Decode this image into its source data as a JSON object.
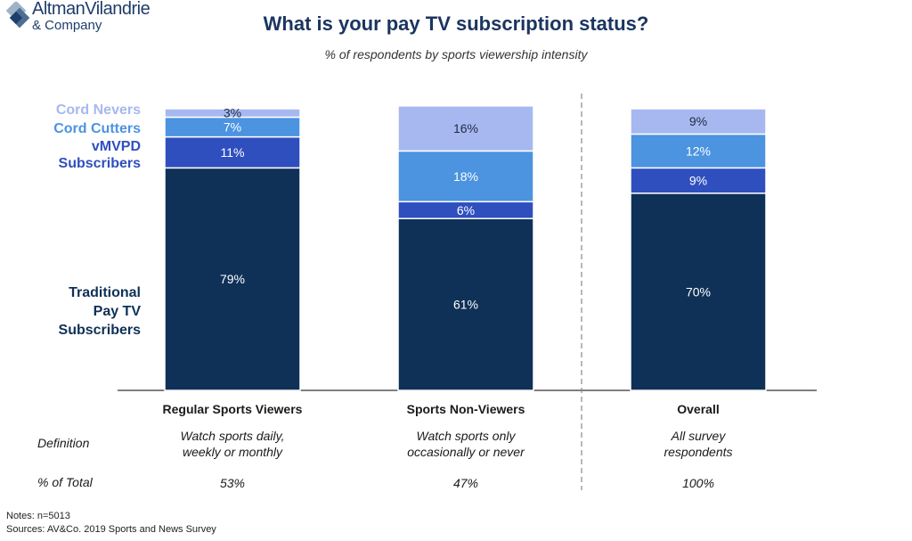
{
  "logo": {
    "line1": "AltmanVilandrie",
    "line2": "& Company"
  },
  "title": "What is your pay TV subscription status?",
  "subtitle": "% of respondents by sports viewership intensity",
  "colors": {
    "traditional": "#0f3157",
    "vmvpd": "#2f4fbf",
    "cutters": "#4c93e0",
    "nevers": "#a7b8f0",
    "label_light": "#ffffff",
    "label_dark": "#1f2a44"
  },
  "chart_data": {
    "type": "bar",
    "stacked": true,
    "categories": [
      "Regular Sports Viewers",
      "Sports Non-Viewers",
      "Overall"
    ],
    "series": [
      {
        "name": "Traditional Pay TV Subscribers",
        "values": [
          79,
          61,
          70
        ]
      },
      {
        "name": "vMVPD Subscribers",
        "values": [
          11,
          6,
          9
        ]
      },
      {
        "name": "Cord Cutters",
        "values": [
          7,
          18,
          12
        ]
      },
      {
        "name": "Cord Nevers",
        "values": [
          3,
          16,
          9
        ]
      }
    ],
    "ylim": [
      0,
      100
    ],
    "data_labels": true,
    "legend_placement": "left"
  },
  "legend": {
    "nevers": "Cord Nevers",
    "cutters": "Cord Cutters",
    "vmvpd_line1": "vMVPD",
    "vmvpd_line2": "Subscribers",
    "trad_line1": "Traditional",
    "trad_line2": "Pay TV",
    "trad_line3": "Subscribers"
  },
  "table": {
    "definition_label": "Definition",
    "total_label": "% of Total",
    "columns": [
      {
        "def_line1": "Watch sports daily,",
        "def_line2": "weekly or monthly",
        "total": "53%"
      },
      {
        "def_line1": "Watch sports only",
        "def_line2": "occasionally or never",
        "total": "47%"
      },
      {
        "def_line1": "All survey",
        "def_line2": "respondents",
        "total": "100%"
      }
    ]
  },
  "notes": {
    "line1": "Notes: n=5013",
    "line2": "Sources: AV&Co. 2019 Sports and News Survey"
  }
}
